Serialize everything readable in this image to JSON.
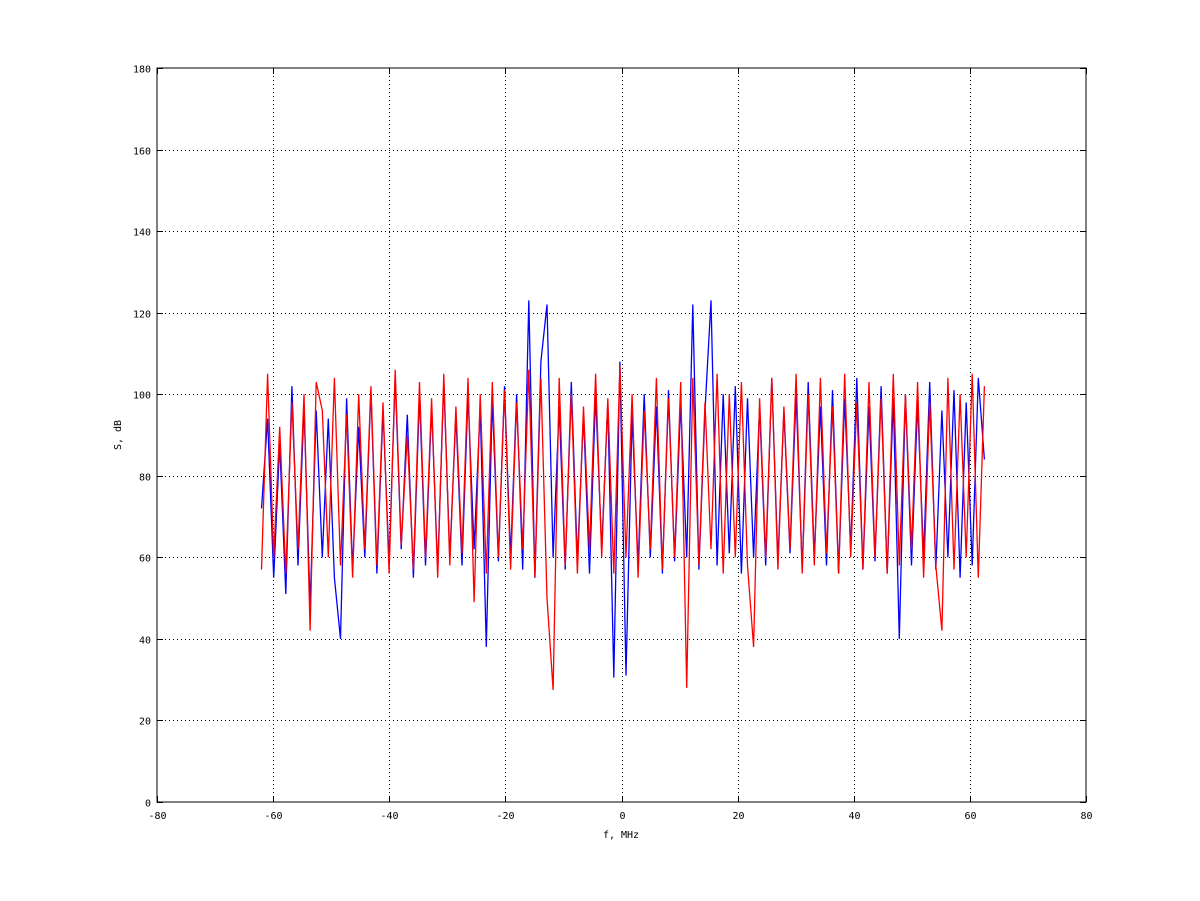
{
  "chart_data": {
    "type": "line",
    "title": "",
    "xlabel": "f, MHz",
    "ylabel": "S, dB",
    "xlim": [
      -80,
      80
    ],
    "ylim": [
      0,
      180
    ],
    "xticks": [
      -80,
      -60,
      -40,
      -20,
      0,
      20,
      40,
      60,
      80
    ],
    "yticks": [
      0,
      20,
      40,
      60,
      80,
      100,
      120,
      140,
      160,
      180
    ],
    "grid": true,
    "x_range": [
      -62,
      62.5
    ],
    "series": [
      {
        "color": "#0000ff",
        "values": [
          72,
          94,
          55,
          88,
          51,
          102,
          58,
          97,
          48,
          96,
          60,
          94,
          55,
          40,
          99,
          57,
          92,
          60,
          101,
          56,
          96,
          59,
          104,
          62,
          95,
          55,
          100,
          58,
          97,
          57,
          103,
          60,
          95,
          58,
          100,
          62,
          97,
          38,
          99,
          59,
          102,
          60,
          100,
          57,
          123,
          55,
          108,
          122,
          60,
          97,
          57,
          103,
          59,
          95,
          56,
          100,
          62,
          98,
          30.5,
          108,
          31,
          95,
          58,
          100,
          60,
          97,
          56,
          101,
          59,
          98,
          60,
          122,
          57,
          96,
          123,
          58,
          100,
          61,
          102,
          56,
          99,
          60,
          97,
          58,
          104,
          59,
          96,
          61,
          100,
          57,
          103,
          60,
          97,
          58,
          101,
          56,
          99,
          62,
          104,
          57,
          97,
          59,
          102,
          56,
          99,
          40,
          100,
          58,
          98,
          60,
          103,
          57,
          96,
          60,
          101,
          55,
          98,
          58,
          104,
          84
        ]
      },
      {
        "color": "#ff0000",
        "values": [
          57,
          105,
          60,
          92,
          56,
          98,
          62,
          100,
          42,
          103,
          96,
          60,
          104,
          58,
          95,
          55,
          100,
          62,
          102,
          58,
          98,
          56,
          106,
          63,
          90,
          57,
          103,
          60,
          99,
          55,
          105,
          58,
          97,
          61,
          104,
          49,
          100,
          56,
          103,
          60,
          101,
          57,
          98,
          62,
          106,
          55,
          104,
          50,
          27.5,
          104,
          58,
          100,
          56,
          97,
          62,
          105,
          60,
          99,
          56,
          107,
          60,
          100,
          55,
          96,
          62,
          104,
          57,
          99,
          60,
          103,
          28,
          104,
          58,
          98,
          62,
          105,
          56,
          100,
          60,
          103,
          58,
          38,
          99,
          60,
          104,
          57,
          97,
          62,
          105,
          56,
          100,
          58,
          104,
          61,
          97,
          56,
          105,
          60,
          98,
          57,
          103,
          60,
          99,
          56,
          105,
          58,
          100,
          62,
          103,
          55,
          98,
          58,
          42,
          104,
          57,
          100,
          60,
          105,
          55,
          102
        ]
      }
    ]
  }
}
